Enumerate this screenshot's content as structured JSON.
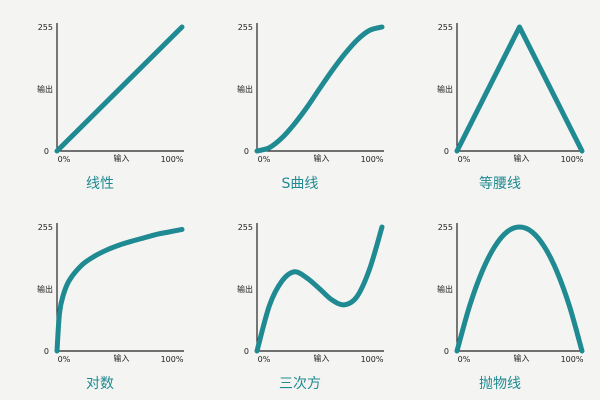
{
  "colors": {
    "curve": "#1f8a91",
    "title": "#1f8a91",
    "axis": "#222222",
    "background": "#f4f4f3"
  },
  "chart_data": [
    {
      "type": "line",
      "title": "线性",
      "xlabel": "输入",
      "ylabel": "输出",
      "xticks": [
        "0%",
        "100%"
      ],
      "yticks": [
        "0",
        "255"
      ],
      "xlim": [
        0,
        100
      ],
      "ylim": [
        0,
        255
      ],
      "x": [
        0,
        100
      ],
      "y": [
        0,
        255
      ]
    },
    {
      "type": "line",
      "title": "S曲线",
      "xlabel": "输入",
      "ylabel": "输出",
      "xticks": [
        "0%",
        "100%"
      ],
      "yticks": [
        "0",
        "255"
      ],
      "xlim": [
        0,
        100
      ],
      "ylim": [
        0,
        255
      ],
      "x": [
        0,
        10,
        20,
        30,
        40,
        50,
        60,
        70,
        80,
        90,
        100
      ],
      "y": [
        0,
        7,
        27,
        56,
        90,
        128,
        165,
        199,
        228,
        248,
        255
      ]
    },
    {
      "type": "line",
      "title": "等腰线",
      "xlabel": "输入",
      "ylabel": "输出",
      "xticks": [
        "0%",
        "100%"
      ],
      "yticks": [
        "0",
        "255"
      ],
      "xlim": [
        0,
        100
      ],
      "ylim": [
        0,
        255
      ],
      "x": [
        0,
        50,
        100
      ],
      "y": [
        0,
        255,
        0
      ]
    },
    {
      "type": "line",
      "title": "对数",
      "xlabel": "输入",
      "ylabel": "输出",
      "xticks": [
        "0%",
        "100%"
      ],
      "yticks": [
        "0",
        "255"
      ],
      "xlim": [
        0,
        100
      ],
      "ylim": [
        0,
        255
      ],
      "x": [
        0,
        2,
        5,
        10,
        20,
        30,
        40,
        50,
        60,
        70,
        80,
        90,
        100
      ],
      "y": [
        0,
        78,
        115,
        146,
        177,
        195,
        208,
        218,
        226,
        233,
        240,
        245,
        250
      ]
    },
    {
      "type": "line",
      "title": "三次方",
      "xlabel": "输入",
      "ylabel": "输出",
      "xticks": [
        "0%",
        "100%"
      ],
      "yticks": [
        "0",
        "255"
      ],
      "xlim": [
        0,
        100
      ],
      "ylim": [
        0,
        255
      ],
      "x": [
        0,
        10,
        20,
        30,
        40,
        50,
        60,
        70,
        80,
        90,
        100
      ],
      "y": [
        0,
        94,
        144,
        163,
        150,
        128,
        105,
        95,
        112,
        168,
        255
      ]
    },
    {
      "type": "line",
      "title": "抛物线",
      "xlabel": "输入",
      "ylabel": "输出",
      "xticks": [
        "0%",
        "100%"
      ],
      "yticks": [
        "0",
        "255"
      ],
      "xlim": [
        0,
        100
      ],
      "ylim": [
        0,
        255
      ],
      "x": [
        0,
        10,
        20,
        30,
        40,
        50,
        60,
        70,
        80,
        90,
        100
      ],
      "y": [
        0,
        92,
        163,
        214,
        245,
        255,
        245,
        214,
        163,
        92,
        0
      ]
    }
  ]
}
